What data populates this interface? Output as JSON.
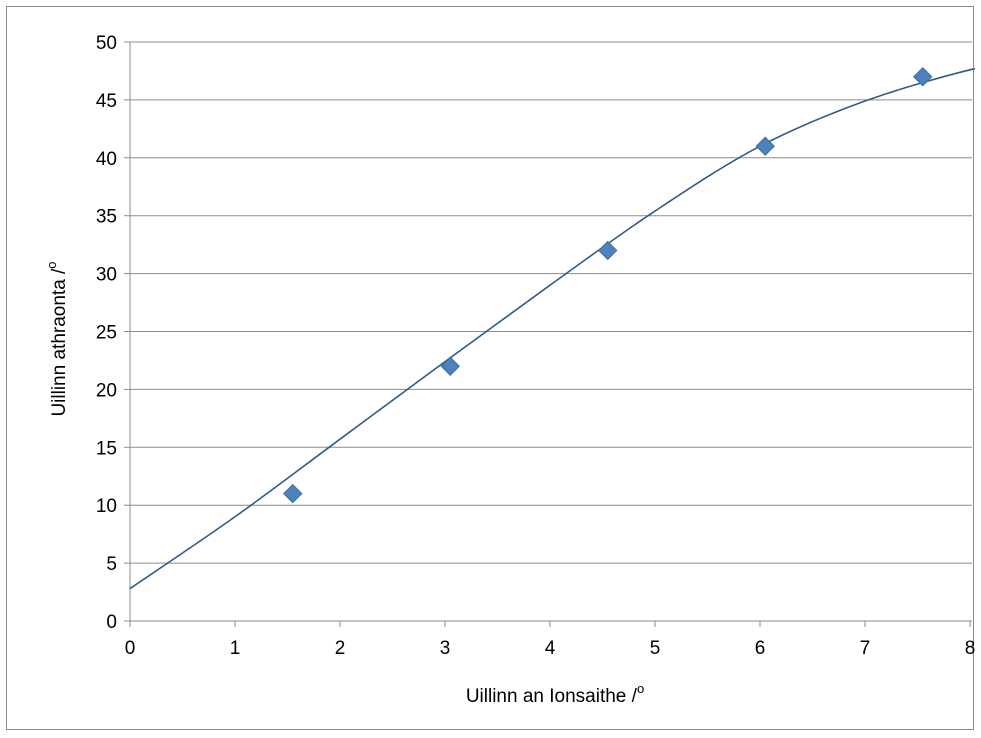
{
  "chart_data": {
    "type": "scatter",
    "title": "",
    "xlabel": "Uillinn an Ionsaithe /",
    "ylabel": "Uillinn athraonta /",
    "label_superscript": "o",
    "xlim": [
      0,
      8
    ],
    "ylim": [
      0,
      50
    ],
    "x_ticks": [
      0,
      1,
      2,
      3,
      4,
      5,
      6,
      7,
      8
    ],
    "y_ticks": [
      0,
      5,
      10,
      15,
      20,
      25,
      30,
      35,
      40,
      45,
      50
    ],
    "grid": "horizontal",
    "legend": "none",
    "series": [
      {
        "marker": "diamond",
        "color": "#4F81BD",
        "points": [
          {
            "x": 1.55,
            "y": 11
          },
          {
            "x": 3.05,
            "y": 22
          },
          {
            "x": 4.55,
            "y": 32
          },
          {
            "x": 6.05,
            "y": 41
          },
          {
            "x": 7.55,
            "y": 47
          }
        ]
      }
    ],
    "trendline": {
      "type": "polynomial",
      "color": "#2E5C8A",
      "x_range": [
        0,
        8.3
      ],
      "points": [
        {
          "x": 0,
          "y": 2.8
        },
        {
          "x": 1,
          "y": 9.0
        },
        {
          "x": 2,
          "y": 15.7
        },
        {
          "x": 3,
          "y": 22.4
        },
        {
          "x": 4,
          "y": 29.0
        },
        {
          "x": 5,
          "y": 35.4
        },
        {
          "x": 6,
          "y": 41.0
        },
        {
          "x": 7,
          "y": 44.9
        },
        {
          "x": 8,
          "y": 47.6
        },
        {
          "x": 8.3,
          "y": 47.8
        }
      ]
    }
  }
}
